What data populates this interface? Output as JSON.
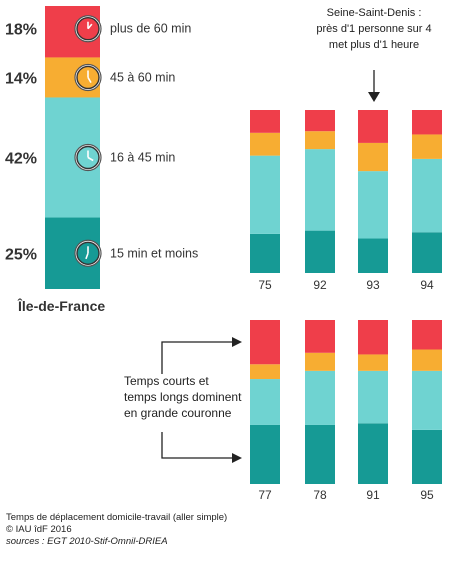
{
  "colors": {
    "plus_60": "#ef3e4a",
    "min_45_60": "#f7ad32",
    "min_16_45": "#6fd3d1",
    "min_15": "#169a95"
  },
  "chart_data": {
    "type": "bar",
    "stacked": true,
    "stack_order": [
      "15 min et moins",
      "16 à 45 min",
      "45 à 60 min",
      "plus de 60 min"
    ],
    "main_bar": {
      "label": "Île-de-France",
      "values": [
        {
          "category": "plus de 60 min",
          "value": 18,
          "display": "18%",
          "icon": "clock-icon"
        },
        {
          "category": "45 à 60 min",
          "value": 14,
          "display": "14%",
          "icon": "clock-icon"
        },
        {
          "category": "16 à 45 min",
          "value": 42,
          "display": "42%",
          "icon": "clock-icon"
        },
        {
          "category": "15 min et moins",
          "value": 25,
          "display": "25%",
          "icon": "clock-icon"
        }
      ]
    },
    "departments_top": [
      {
        "label": "75",
        "values": [
          24,
          48,
          14,
          14
        ]
      },
      {
        "label": "92",
        "values": [
          26,
          50,
          11,
          13
        ]
      },
      {
        "label": "93",
        "values": [
          22,
          43,
          18,
          21
        ]
      },
      {
        "label": "94",
        "values": [
          25,
          45,
          15,
          15
        ]
      }
    ],
    "departments_bottom": [
      {
        "label": "77",
        "values": [
          36,
          28,
          9,
          27
        ]
      },
      {
        "label": "78",
        "values": [
          36,
          33,
          11,
          20
        ]
      },
      {
        "label": "91",
        "values": [
          37,
          32,
          10,
          21
        ]
      },
      {
        "label": "95",
        "values": [
          33,
          36,
          13,
          18
        ]
      }
    ],
    "annotations": {
      "seine_saint_denis": [
        "Seine-Saint-Denis :",
        "près d'1 personne sur 4",
        "met plus d'1 heure"
      ],
      "couronne": [
        "Temps courts et",
        "temps longs dominent",
        "en grande couronne"
      ]
    }
  },
  "footer": {
    "line1": "Temps de déplacement domicile-travail (aller simple)",
    "line2": "© IAU îdF 2016",
    "line3": "sources : EGT 2010-Stif-Omnil-DRIEA"
  }
}
